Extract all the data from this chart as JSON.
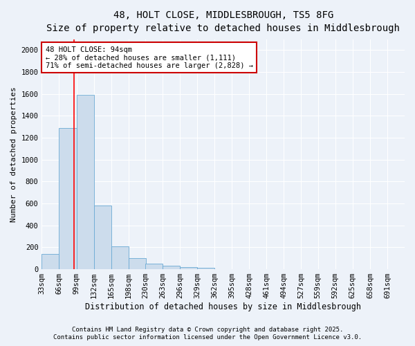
{
  "title_line1": "48, HOLT CLOSE, MIDDLESBROUGH, TS5 8FG",
  "title_line2": "Size of property relative to detached houses in Middlesbrough",
  "xlabel": "Distribution of detached houses by size in Middlesbrough",
  "ylabel": "Number of detached properties",
  "bar_color": "#ccdcec",
  "bar_edge_color": "#6aaad4",
  "background_color": "#edf2f9",
  "grid_color": "#ffffff",
  "red_line_x": 94,
  "annotation_line1": "48 HOLT CLOSE: 94sqm",
  "annotation_line2": "← 28% of detached houses are smaller (1,111)",
  "annotation_line3": "71% of semi-detached houses are larger (2,828) →",
  "annotation_box_color": "#ffffff",
  "annotation_box_edge": "#cc0000",
  "categories": [
    "33sqm",
    "66sqm",
    "99sqm",
    "132sqm",
    "165sqm",
    "198sqm",
    "230sqm",
    "263sqm",
    "296sqm",
    "329sqm",
    "362sqm",
    "395sqm",
    "428sqm",
    "461sqm",
    "494sqm",
    "527sqm",
    "559sqm",
    "592sqm",
    "625sqm",
    "658sqm",
    "691sqm"
  ],
  "bin_edges": [
    33,
    66,
    99,
    132,
    165,
    198,
    230,
    263,
    296,
    329,
    362,
    395,
    428,
    461,
    494,
    527,
    559,
    592,
    625,
    658,
    691
  ],
  "bin_width": 33,
  "values": [
    140,
    1290,
    1590,
    580,
    210,
    100,
    50,
    30,
    20,
    15,
    0,
    0,
    0,
    0,
    0,
    0,
    0,
    0,
    0,
    0,
    0
  ],
  "ylim": [
    0,
    2100
  ],
  "yticks": [
    0,
    200,
    400,
    600,
    800,
    1000,
    1200,
    1400,
    1600,
    1800,
    2000
  ],
  "footer_line1": "Contains HM Land Registry data © Crown copyright and database right 2025.",
  "footer_line2": "Contains public sector information licensed under the Open Government Licence v3.0.",
  "title_fontsize": 10,
  "subtitle_fontsize": 9,
  "xlabel_fontsize": 8.5,
  "ylabel_fontsize": 8,
  "tick_fontsize": 7.5,
  "annot_fontsize": 7.5,
  "footer_fontsize": 6.5
}
